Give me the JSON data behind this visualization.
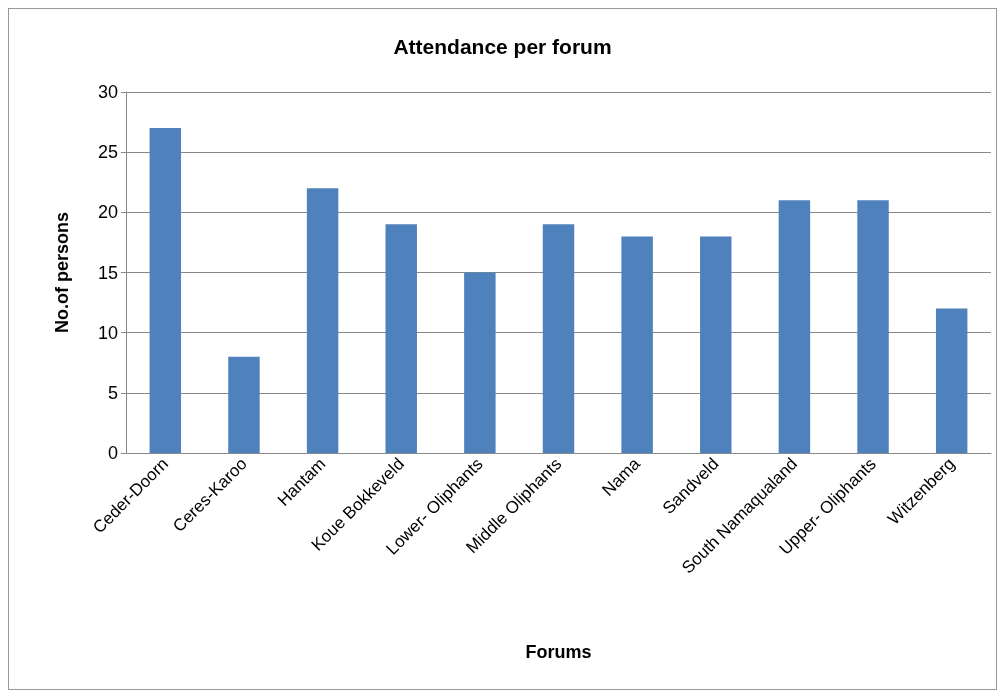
{
  "chart_data": {
    "type": "bar",
    "title": "Attendance per forum",
    "xlabel": "Forums",
    "ylabel": "No.of persons",
    "categories": [
      "Ceder-Doorn",
      "Ceres-Karoo",
      "Hantam",
      "Koue Bokkeveld",
      "Lower- Oliphants",
      "Middle Oliphants",
      "Nama",
      "Sandveld",
      "South Namaqualand",
      "Upper- Oliphants",
      "Witzenberg"
    ],
    "values": [
      27,
      8,
      22,
      19,
      15,
      19,
      18,
      18,
      21,
      21,
      12
    ],
    "color": "#4f81bd",
    "ylim": [
      0,
      30
    ],
    "yticks": [
      0,
      5,
      10,
      15,
      20,
      25,
      30
    ],
    "grid": "y"
  }
}
